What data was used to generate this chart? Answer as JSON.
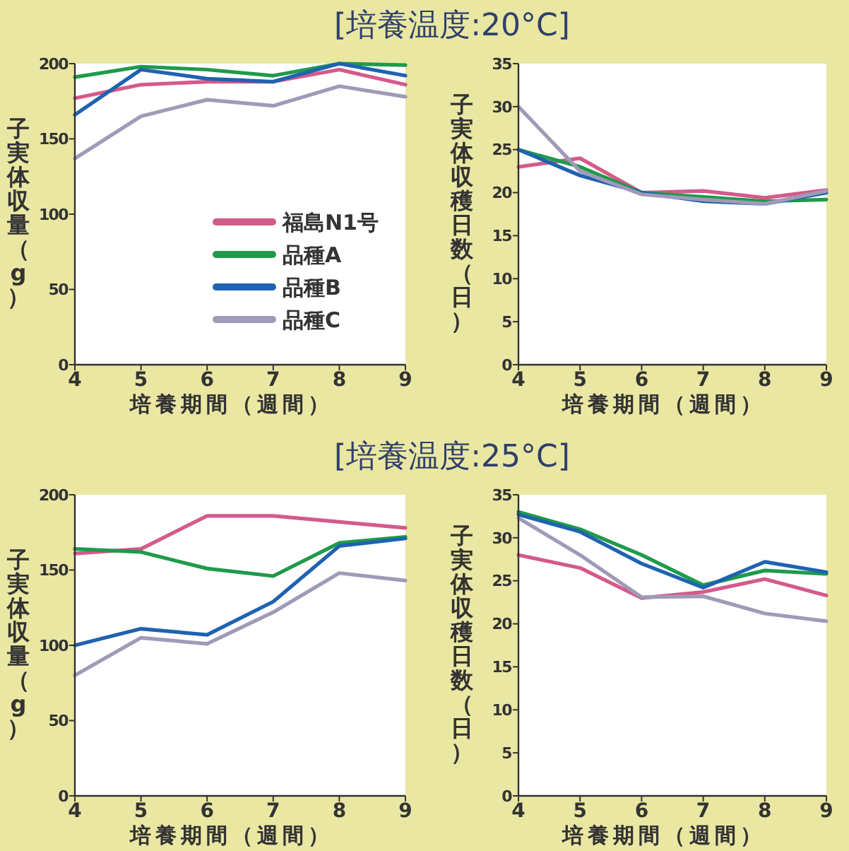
{
  "chart_data": [
    {
      "type": "line",
      "title": "[培養温度:20°C]",
      "xlabel": "培養期間（週間）",
      "ylabel": "子実体収量（g）",
      "x": [
        4,
        5,
        6,
        7,
        8,
        9
      ],
      "xlim": [
        4,
        9
      ],
      "xticks": [
        4,
        5,
        6,
        7,
        8,
        9
      ],
      "ylim": [
        0,
        200
      ],
      "yticks": [
        0,
        50,
        100,
        150,
        200
      ],
      "grid": false,
      "legend": "right",
      "marker": "none",
      "series": [
        {
          "name": "福島N1号",
          "color": "#d45a8a",
          "values": [
            177,
            186,
            188,
            188,
            196,
            186
          ]
        },
        {
          "name": "品種A",
          "color": "#1f9a4a",
          "values": [
            191,
            198,
            196,
            192,
            200,
            199
          ]
        },
        {
          "name": "品種B",
          "color": "#1f62b0",
          "values": [
            166,
            196,
            190,
            188,
            200,
            192
          ]
        },
        {
          "name": "品種C",
          "color": "#a09ab8",
          "values": [
            137,
            165,
            176,
            172,
            185,
            178
          ]
        }
      ]
    },
    {
      "type": "line",
      "xlabel": "培養期間（週間）",
      "ylabel": "子実体収穫日数（日）",
      "x": [
        4,
        5,
        6,
        7,
        8,
        9
      ],
      "xlim": [
        4,
        9
      ],
      "xticks": [
        4,
        5,
        6,
        7,
        8,
        9
      ],
      "ylim": [
        0,
        35
      ],
      "yticks": [
        0,
        5,
        10,
        15,
        20,
        25,
        30,
        35
      ],
      "grid": false,
      "legend": false,
      "marker": "none",
      "series": [
        {
          "color": "#d45a8a",
          "values": [
            23,
            24,
            20,
            20.2,
            19.4,
            20.3
          ]
        },
        {
          "color": "#1f9a4a",
          "values": [
            25,
            23,
            20,
            19.5,
            19,
            19.2
          ]
        },
        {
          "color": "#1f62b0",
          "values": [
            25,
            22,
            20,
            19,
            18.7,
            20
          ]
        },
        {
          "color": "#a09ab8",
          "values": [
            30,
            22.5,
            19.8,
            19.2,
            18.7,
            20.2
          ]
        }
      ]
    },
    {
      "type": "line",
      "title": "[培養温度:25°C]",
      "xlabel": "培養期間（週間）",
      "ylabel": "子実体収量（g）",
      "x": [
        4,
        5,
        6,
        7,
        8,
        9
      ],
      "xlim": [
        4,
        9
      ],
      "xticks": [
        4,
        5,
        6,
        7,
        8,
        9
      ],
      "ylim": [
        0,
        200
      ],
      "yticks": [
        0,
        50,
        100,
        150,
        200
      ],
      "grid": false,
      "legend": false,
      "marker": "none",
      "series": [
        {
          "color": "#d45a8a",
          "values": [
            161,
            164,
            186,
            186,
            182,
            178
          ]
        },
        {
          "color": "#1f9a4a",
          "values": [
            164,
            162,
            151,
            146,
            168,
            172
          ]
        },
        {
          "color": "#1f62b0",
          "values": [
            100,
            111,
            107,
            129,
            166,
            171
          ]
        },
        {
          "color": "#a09ab8",
          "values": [
            80,
            105,
            101,
            122,
            148,
            143
          ]
        }
      ]
    },
    {
      "type": "line",
      "xlabel": "培養期間（週間）",
      "ylabel": "子実体収穫日数（日）",
      "x": [
        4,
        5,
        6,
        7,
        8,
        9
      ],
      "xlim": [
        4,
        9
      ],
      "xticks": [
        4,
        5,
        6,
        7,
        8,
        9
      ],
      "ylim": [
        0,
        35
      ],
      "yticks": [
        0,
        5,
        10,
        15,
        20,
        25,
        30,
        35
      ],
      "grid": false,
      "legend": false,
      "marker": "none",
      "series": [
        {
          "color": "#d45a8a",
          "values": [
            28,
            26.5,
            23,
            23.7,
            25.2,
            23.3
          ]
        },
        {
          "color": "#1f9a4a",
          "values": [
            33,
            31,
            28,
            24.5,
            26.2,
            25.8
          ]
        },
        {
          "color": "#1f62b0",
          "values": [
            32.7,
            30.7,
            27,
            24.2,
            27.2,
            26
          ]
        },
        {
          "color": "#a09ab8",
          "values": [
            32.3,
            28,
            23.1,
            23.2,
            21.2,
            20.3
          ]
        }
      ]
    }
  ]
}
